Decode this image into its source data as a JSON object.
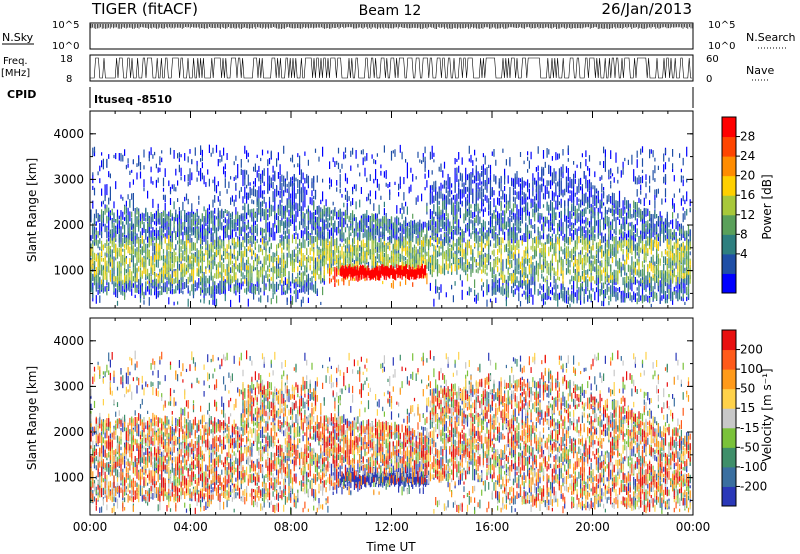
{
  "header": {
    "title": "TIGER (fitACF)",
    "beam": "Beam 12",
    "date": "26/Jan/2013"
  },
  "side_labels": {
    "nsky": "N.Sky",
    "freq_top": "Freq.",
    "freq_unit": "[MHz]",
    "cpid": "CPID",
    "nsearch": "N.Search",
    "nave": "Nave",
    "cpid_value": "Ituseq -8510"
  },
  "top_strips": {
    "noise_ticks": [
      "10^5",
      "10^0"
    ],
    "freq_ticks": [
      "18",
      "8"
    ],
    "nave_ticks": [
      "60",
      "0"
    ]
  },
  "chart_data": [
    {
      "type": "heatmap",
      "name": "power",
      "xlabel": "",
      "ylabel": "Slant Range [km]",
      "xlim": [
        0,
        24
      ],
      "ylim": [
        180,
        4500
      ],
      "yticks": [
        "1000",
        "2000",
        "3000",
        "4000"
      ],
      "colorbar": {
        "label": "Power [dB]",
        "ticks": [
          "28",
          "24",
          "20",
          "16",
          "12",
          "8",
          "4"
        ],
        "colors": [
          "#0000ff",
          "#1f4fa6",
          "#2e7f7f",
          "#5aa05a",
          "#a8c83a",
          "#ffd000",
          "#ff8c00",
          "#ff4500",
          "#ff0000"
        ]
      }
    },
    {
      "type": "heatmap",
      "name": "velocity",
      "xlabel": "Time UT",
      "ylabel": "Slant Range [km]",
      "xlim": [
        0,
        24
      ],
      "ylim": [
        180,
        4500
      ],
      "xticks": [
        "00:00",
        "04:00",
        "08:00",
        "12:00",
        "16:00",
        "20:00",
        "00:00"
      ],
      "yticks": [
        "1000",
        "2000",
        "3000",
        "4000"
      ],
      "colorbar": {
        "label": "Velocity [m s⁻¹]",
        "ticks": [
          "200",
          "100",
          "50",
          "15",
          "-15",
          "-50",
          "-100",
          "-200"
        ],
        "colors": [
          "#2a38b8",
          "#3a6fa0",
          "#3f8f6a",
          "#7ac23a",
          "#c8c8c8",
          "#ffd24a",
          "#ff9a1a",
          "#ff5a1a",
          "#e81010"
        ]
      }
    }
  ]
}
